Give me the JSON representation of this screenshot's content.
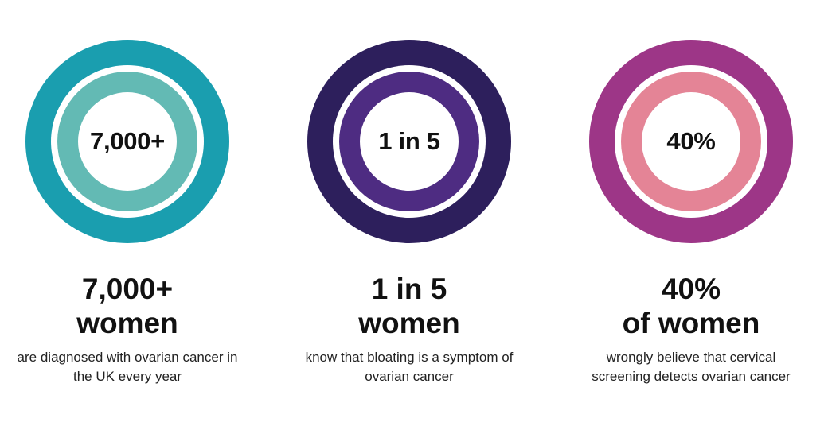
{
  "stats": [
    {
      "ring_value": "7,000+",
      "headline_line1": "7,000+",
      "headline_line2": "women",
      "description": "are diagnosed with ovarian cancer in the UK every year",
      "colors": {
        "outer": "#1a9eaf",
        "inner": "#63bab4"
      }
    },
    {
      "ring_value": "1 in 5",
      "headline_line1": "1 in 5",
      "headline_line2": "women",
      "description": "know that bloating is a symptom of ovarian cancer",
      "colors": {
        "outer": "#2d1f5c",
        "inner": "#4e2c82"
      }
    },
    {
      "ring_value": "40%",
      "headline_line1": "40%",
      "headline_line2": "of women",
      "description": "wrongly believe that cervical screening detects ovarian cancer",
      "colors": {
        "outer": "#9d3687",
        "inner": "#e48496"
      }
    }
  ]
}
